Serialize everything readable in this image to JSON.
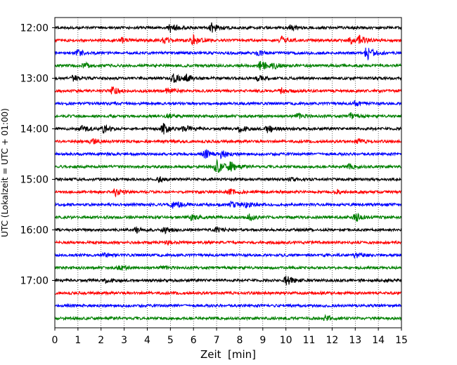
{
  "chart_data": {
    "type": "line",
    "subtype": "helicorder-seismogram",
    "title": "",
    "xlabel": "Zeit  [min]",
    "ylabel": "UTC (Lokalzeit = UTC + 01:00)",
    "xlim": [
      0,
      15
    ],
    "x_ticks": [
      0,
      1,
      2,
      3,
      4,
      5,
      6,
      7,
      8,
      9,
      10,
      11,
      12,
      13,
      14,
      15
    ],
    "x_tick_labels": [
      "0",
      "1",
      "2",
      "3",
      "4",
      "5",
      "6",
      "7",
      "8",
      "9",
      "10",
      "11",
      "12",
      "13",
      "14",
      "15"
    ],
    "y_tick_labels": [
      "12:00",
      "13:00",
      "14:00",
      "15:00",
      "16:00",
      "17:00"
    ],
    "traces_per_hour": 4,
    "minutes_per_trace": 15,
    "start_time": "12:00",
    "end_time": "18:00",
    "vertical_grid": "dotted",
    "colors": [
      "#000000",
      "#ff0000",
      "#0000ff",
      "#008000"
    ],
    "traces": [
      {
        "start": "12:00",
        "color": "#000000",
        "events": [
          [
            5.0,
            1.0
          ],
          [
            6.8,
            1.2
          ],
          [
            10.2,
            0.6
          ]
        ]
      },
      {
        "start": "12:15",
        "color": "#ff0000",
        "events": [
          [
            2.9,
            0.6
          ],
          [
            4.7,
            0.7
          ],
          [
            6.0,
            1.1
          ],
          [
            9.8,
            0.8
          ],
          [
            12.8,
            0.6
          ],
          [
            13.2,
            1.0
          ]
        ]
      },
      {
        "start": "12:30",
        "color": "#0000ff",
        "events": [
          [
            1.0,
            0.7
          ],
          [
            8.8,
            0.4
          ],
          [
            13.5,
            1.6
          ]
        ]
      },
      {
        "start": "12:45",
        "color": "#008000",
        "events": [
          [
            1.3,
            0.6
          ],
          [
            8.9,
            1.2
          ],
          [
            9.5,
            0.6
          ]
        ]
      },
      {
        "start": "13:00",
        "color": "#000000",
        "events": [
          [
            0.8,
            0.6
          ],
          [
            5.1,
            1.0
          ],
          [
            5.7,
            0.8
          ],
          [
            8.8,
            0.6
          ]
        ]
      },
      {
        "start": "13:15",
        "color": "#ff0000",
        "events": [
          [
            2.5,
            0.8
          ],
          [
            4.9,
            0.7
          ],
          [
            9.8,
            0.6
          ]
        ]
      },
      {
        "start": "13:30",
        "color": "#0000ff",
        "events": [
          [
            13.0,
            0.5
          ]
        ]
      },
      {
        "start": "13:45",
        "color": "#008000",
        "events": [
          [
            4.9,
            0.6
          ],
          [
            10.5,
            0.6
          ],
          [
            12.8,
            0.6
          ]
        ]
      },
      {
        "start": "14:00",
        "color": "#000000",
        "events": [
          [
            1.2,
            0.8
          ],
          [
            2.1,
            1.0
          ],
          [
            4.7,
            1.2
          ],
          [
            5.6,
            0.8
          ],
          [
            8.0,
            0.8
          ],
          [
            9.2,
            0.9
          ]
        ]
      },
      {
        "start": "14:15",
        "color": "#ff0000",
        "events": [
          [
            1.6,
            0.5
          ],
          [
            13.1,
            0.5
          ]
        ]
      },
      {
        "start": "14:30",
        "color": "#0000ff",
        "events": [
          [
            6.5,
            0.9
          ],
          [
            7.2,
            0.8
          ]
        ]
      },
      {
        "start": "14:45",
        "color": "#008000",
        "events": [
          [
            7.0,
            1.6
          ],
          [
            7.6,
            1.0
          ],
          [
            12.7,
            0.5
          ]
        ]
      },
      {
        "start": "15:00",
        "color": "#000000",
        "events": [
          [
            4.5,
            0.6
          ],
          [
            10.2,
            0.5
          ]
        ]
      },
      {
        "start": "15:15",
        "color": "#ff0000",
        "events": [
          [
            2.6,
            0.9
          ],
          [
            7.6,
            0.6
          ],
          [
            12.2,
            0.5
          ]
        ]
      },
      {
        "start": "15:30",
        "color": "#0000ff",
        "events": [
          [
            5.1,
            1.1
          ],
          [
            7.6,
            0.6
          ],
          [
            8.3,
            0.6
          ]
        ]
      },
      {
        "start": "15:45",
        "color": "#008000",
        "events": [
          [
            5.9,
            0.7
          ],
          [
            8.4,
            0.7
          ],
          [
            13.0,
            1.0
          ]
        ]
      },
      {
        "start": "16:00",
        "color": "#000000",
        "events": [
          [
            3.5,
            0.6
          ],
          [
            4.7,
            0.8
          ],
          [
            7.0,
            0.5
          ]
        ]
      },
      {
        "start": "16:15",
        "color": "#ff0000",
        "events": [
          [
            4.9,
            0.4
          ]
        ]
      },
      {
        "start": "16:30",
        "color": "#0000ff",
        "events": [
          [
            2.1,
            0.5
          ],
          [
            13.0,
            0.6
          ]
        ]
      },
      {
        "start": "16:45",
        "color": "#008000",
        "events": [
          [
            2.8,
            0.6
          ],
          [
            4.6,
            0.4
          ]
        ]
      },
      {
        "start": "17:00",
        "color": "#000000",
        "events": [
          [
            2.2,
            0.5
          ],
          [
            10.0,
            1.2
          ]
        ]
      },
      {
        "start": "17:15",
        "color": "#ff0000",
        "events": []
      },
      {
        "start": "17:30",
        "color": "#0000ff",
        "events": []
      },
      {
        "start": "17:45",
        "color": "#008000",
        "events": [
          [
            11.7,
            0.5
          ]
        ]
      }
    ]
  }
}
